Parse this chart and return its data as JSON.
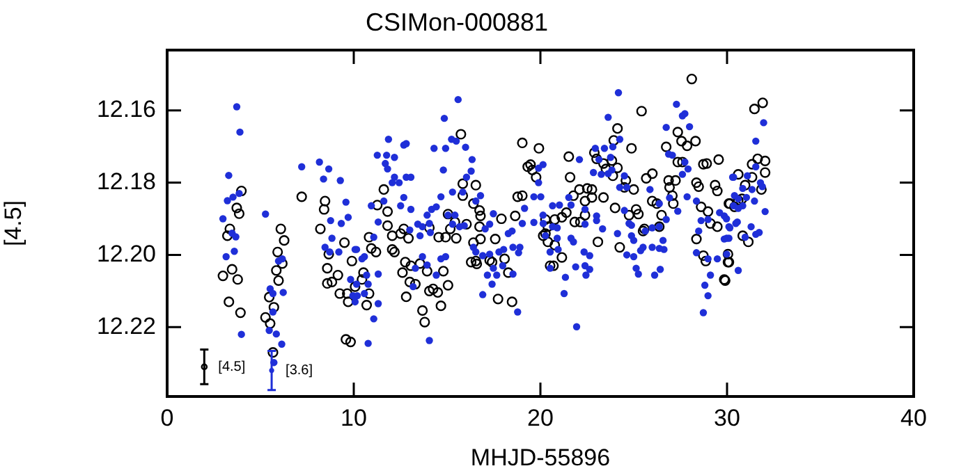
{
  "chart_data": {
    "type": "scatter",
    "title": "CSIMon-000881",
    "xlabel": "MHJD-55896",
    "ylabel": "[4.5]",
    "xlim": [
      0,
      40
    ],
    "xticks": [
      0,
      10,
      20,
      30,
      40
    ],
    "ylim": [
      12.2392,
      12.1433
    ],
    "yticks": [
      12.16,
      12.18,
      {
        "value": 12.2,
        "label": "12.20"
      },
      12.22
    ],
    "grid": false,
    "legend": false,
    "marker": "circle",
    "series": [
      {
        "color": "#000000",
        "x": [
          3.98,
          3.73,
          3.86,
          3.36,
          3.23,
          3.48,
          3.78,
          2.99,
          3.31,
          3.93,
          6.09,
          6.27,
          5.92,
          6.17,
          5.85,
          5.97,
          5.47,
          5.72,
          5.27,
          5.52,
          5.67,
          7.21,
          8.46,
          8.41,
          8.21,
          8.66,
          9.5,
          8.58,
          9.15,
          8.83,
          8.58,
          9.25,
          9.7,
          9.65,
          9.58,
          9.83,
          9.9,
          15.74,
          19.03,
          19.92,
          19.32,
          19.57,
          19.47,
          19.77,
          11.61,
          11.26,
          11.81,
          15.84,
          16.54,
          15.84,
          16.41,
          16.74,
          16.79,
          16.74,
          15.05,
          15.42,
          16.04,
          15.17,
          14.05,
          11.81,
          12.68,
          12.51,
          12.06,
          12.93,
          14.55,
          14.92,
          15.49,
          17.91,
          18.65,
          18.78,
          19.03,
          17.58,
          16.79,
          16.41,
          10.82,
          10.94,
          11.19,
          12.06,
          12.18,
          16.54,
          17.28,
          17.41,
          16.29,
          16.59,
          12.76,
          13.55,
          13.06,
          18.08,
          18.28,
          10.52,
          10.44,
          10.07,
          10.82,
          10.69,
          12.61,
          13.93,
          14.8,
          13.0,
          13.3,
          15.05,
          14.25,
          14.5,
          14.05,
          12.81,
          14.67,
          13.68,
          13.8,
          17.73,
          18.48,
          20.27,
          28.11,
          25.42,
          24.13,
          23.93,
          22.89,
          23.01,
          24.88,
          21.52,
          21.59,
          23.38,
          23.83,
          23.51,
          24.13,
          23.88,
          27.36,
          27.56,
          27.86,
          28.31,
          26.74,
          27.61,
          27.36,
          27.24,
          26.87,
          28.73,
          28.91,
          29.55,
          26.0,
          25.67,
          24.58,
          24.5,
          25.0,
          26.92,
          27.07,
          27.12,
          28.36,
          28.48,
          29.36,
          29.48,
          30.15,
          22.09,
          22.51,
          22.76,
          22.39,
          21.77,
          22.76,
          23.38,
          24.0,
          21.39,
          21.15,
          20.77,
          21.84,
          22.14,
          22.39,
          20.27,
          20.4,
          20.15,
          20.4,
          20.77,
          21.15,
          20.7,
          24.75,
          25.13,
          25.25,
          25.99,
          26.24,
          26.49,
          25.57,
          25.5,
          26.37,
          23.08,
          24.25,
          20.52,
          28.36,
          28.73,
          28.86,
          29.11,
          29.48,
          30.1,
          29.85,
          28.61,
          28.98,
          31.47,
          31.91,
          31.34,
          31.64,
          32.04,
          32.04,
          31.84,
          30.6,
          31.34,
          30.97,
          30.1,
          30.4,
          30.6,
          30.8,
          30.84,
          31.14,
          30.05,
          30.05,
          29.9
        ],
        "values": [
          12.1823,
          12.187,
          12.1886,
          12.1928,
          12.1947,
          12.204,
          12.2068,
          12.2058,
          12.213,
          12.216,
          12.1928,
          12.196,
          12.1992,
          12.2024,
          12.2043,
          12.2071,
          12.2117,
          12.2145,
          12.2173,
          12.219,
          12.227,
          12.1839,
          12.1851,
          12.1874,
          12.1928,
          12.1998,
          12.1966,
          12.2037,
          12.2056,
          12.2075,
          12.2079,
          12.2107,
          12.213,
          12.2107,
          12.2234,
          12.2241,
          12.2017,
          12.1666,
          12.169,
          12.1705,
          12.1756,
          12.1765,
          12.175,
          12.1785,
          12.1819,
          12.1862,
          12.188,
          12.1803,
          12.1807,
          12.1836,
          12.1858,
          12.1877,
          12.1892,
          12.1922,
          12.1887,
          12.1909,
          12.1915,
          12.1928,
          12.1925,
          12.1919,
          12.1928,
          12.1941,
          12.1947,
          12.1954,
          12.1951,
          12.1951,
          12.1954,
          12.19,
          12.1892,
          12.1839,
          12.1836,
          12.1956,
          12.1956,
          12.1966,
          12.1951,
          12.1982,
          12.1992,
          12.1985,
          12.1992,
          12.2017,
          12.2015,
          12.202,
          12.202,
          12.2025,
          12.202,
          12.2024,
          12.203,
          12.2011,
          12.2049,
          12.2049,
          12.2068,
          12.2088,
          12.2107,
          12.2139,
          12.2049,
          12.2045,
          12.2045,
          12.2075,
          12.2081,
          12.2084,
          12.2094,
          12.2104,
          12.21,
          12.2116,
          12.2141,
          12.2154,
          12.2186,
          12.2122,
          12.213,
          12.1941,
          12.1513,
          12.1602,
          12.165,
          12.1683,
          12.1717,
          12.1734,
          12.1705,
          12.1728,
          12.1785,
          12.1747,
          12.1739,
          12.1762,
          12.1759,
          12.1781,
          12.166,
          12.1685,
          12.1698,
          12.1685,
          12.1701,
          12.1743,
          12.1743,
          12.1794,
          12.1794,
          12.1749,
          12.1747,
          12.1736,
          12.1775,
          12.1788,
          12.1794,
          12.1813,
          12.1819,
          12.1813,
          12.1836,
          12.1858,
          12.18,
          12.1811,
          12.1807,
          12.1823,
          12.1858,
          12.1819,
          12.1816,
          12.1819,
          12.1851,
          12.1836,
          12.1841,
          12.1841,
          12.187,
          12.1883,
          12.1896,
          12.1902,
          12.1909,
          12.1909,
          12.189,
          12.1902,
          12.1922,
          12.1947,
          12.1964,
          12.1973,
          12.2007,
          12.203,
          12.189,
          12.1874,
          12.1887,
          12.1851,
          12.1858,
          12.189,
          12.1928,
          12.1934,
          12.1922,
          12.1964,
          12.1979,
          12.203,
          12.1956,
          12.2002,
          12.2017,
          12.1913,
          12.1922,
          12.202,
          12.2068,
          12.1867,
          12.188,
          12.1596,
          12.1579,
          12.1749,
          12.1734,
          12.174,
          12.1772,
          12.1819,
          12.1777,
          12.1785,
          12.1807,
          12.1858,
          12.1867,
          12.1849,
          12.1845,
          12.1947,
          12.1964,
          12.1998,
          12.202,
          12.2071
        ]
      },
      {
        "color": "#1f2fd8",
        "x": [
          3.73,
          3.9,
          3.3,
          3.86,
          3.23,
          3.53,
          2.99,
          3.48,
          3.68,
          3.6,
          3.16,
          3.98,
          5.27,
          5.52,
          5.67,
          6.22,
          6.17,
          5.97,
          5.67,
          5.47,
          5.85,
          6.14,
          5.72,
          7.21,
          8.16,
          8.66,
          8.38,
          9.28,
          9.58,
          9.7,
          8.76,
          8.83,
          8.46,
          8.71,
          9.2,
          9.33,
          10.15,
          9.83,
          10.15,
          9.95,
          10.07,
          15.59,
          14.85,
          11.86,
          12.68,
          12.81,
          15.24,
          15.49,
          11.26,
          11.76,
          12.18,
          14.3,
          14.92,
          15.99,
          11.69,
          11.81,
          16.34,
          14.8,
          16.29,
          12.18,
          12.81,
          13.06,
          12.43,
          12.06,
          16.04,
          15.84,
          15.29,
          16.79,
          16.54,
          12.68,
          11.61,
          10.94,
          12.51,
          13.06,
          14.67,
          14.42,
          14.17,
          13.93,
          15.05,
          15.42,
          11.31,
          13.43,
          13.68,
          14.05,
          15.29,
          15.67,
          15.92,
          17.28,
          17.04,
          17.48,
          13.0,
          13.55,
          14.1,
          11.07,
          16.41,
          16.54,
          16.91,
          17.28,
          17.78,
          18.03,
          18.53,
          18.9,
          18.83,
          18.28,
          18.48,
          19.03,
          19.65,
          19.15,
          19.65,
          20.14,
          20.02,
          19.9,
          19.9,
          20.14,
          10.07,
          10.57,
          10.44,
          13.68,
          14.67,
          14.92,
          13.3,
          13.93,
          10.69,
          11.31,
          17.48,
          17.66,
          17.98,
          17.16,
          18.53,
          17.41,
          14.42,
          13.18,
          10.57,
          10.19,
          10.77,
          11.31,
          16.91,
          11.07,
          18.78,
          10.77,
          14.05,
          24.18,
          27.29,
          27.61,
          27.74,
          23.63,
          26.74,
          27.99,
          24.25,
          23.88,
          23.43,
          22.94,
          23.14,
          26.87,
          27.07,
          27.74,
          27.91,
          27.61,
          22.09,
          23.76,
          22.84,
          23.26,
          23.63,
          23.83,
          24.5,
          24.25,
          24.63,
          25.87,
          26.37,
          26.92,
          30.35,
          21.52,
          21.02,
          20.65,
          21.64,
          22.39,
          20.15,
          20.65,
          20.9,
          23.01,
          23.01,
          23.33,
          24.5,
          24.75,
          24.88,
          25.62,
          25.99,
          26.37,
          26.74,
          27.36,
          27.86,
          28.36,
          28.61,
          28.98,
          29.6,
          29.85,
          30.35,
          30.1,
          29.98,
          28.48,
          20.27,
          20.9,
          21.64,
          21.77,
          22.39,
          24.13,
          24.88,
          25.0,
          25.5,
          25.99,
          26.57,
          26.37,
          26.62,
          24.63,
          25.0,
          25.37,
          20.52,
          20.95,
          22.34,
          22.64,
          28.36,
          28.98,
          29.48,
          29.98,
          20.52,
          21.89,
          22.39,
          22.64,
          21.34,
          22.44,
          25.13,
          25.25,
          26.12,
          26.42,
          29.11,
          28.81,
          28.98,
          28.73,
          21.27,
          21.94,
          31.96,
          31.54,
          30.3,
          31.09,
          31.54,
          30.84,
          31.34,
          31.79,
          31.89,
          30.4,
          30.6,
          31.04,
          31.47,
          30.84,
          30.6,
          32.04,
          29.97,
          30.47,
          30.55,
          30.15,
          31.29,
          30.1,
          29.85,
          31.72,
          31.54,
          30.97,
          30.6
        ],
        "values": [
          12.159,
          12.166,
          12.178,
          12.183,
          12.185,
          12.184,
          12.19,
          12.194,
          12.195,
          12.199,
          12.2005,
          12.222,
          12.1887,
          12.2094,
          12.2107,
          12.2104,
          12.2011,
          12.2017,
          12.2158,
          12.2209,
          12.2219,
          12.2247,
          12.2298,
          12.1756,
          12.1743,
          12.1762,
          12.179,
          12.1794,
          12.1854,
          12.1896,
          12.1905,
          12.1954,
          12.1979,
          12.1992,
          12.1992,
          12.1913,
          12.1985,
          12.2068,
          12.2081,
          12.2113,
          12.213,
          12.157,
          12.1622,
          12.168,
          12.1696,
          12.1692,
          12.168,
          12.1685,
          12.1724,
          12.1724,
          12.173,
          12.1705,
          12.1705,
          12.1702,
          12.1747,
          12.1762,
          12.1736,
          12.1765,
          12.1768,
          12.1785,
          12.1785,
          12.1785,
          12.18,
          12.18,
          12.1785,
          12.1826,
          12.1826,
          12.1836,
          12.1851,
          12.1841,
          12.1851,
          12.1864,
          12.1864,
          12.1874,
          12.1839,
          12.1867,
          12.1874,
          12.189,
          12.189,
          12.189,
          12.1909,
          12.1915,
          12.1922,
          12.1913,
          12.1915,
          12.1922,
          12.1919,
          12.1915,
          12.1928,
          12.1886,
          12.1931,
          12.1947,
          12.1938,
          12.1951,
          12.1979,
          12.1992,
          12.2002,
          12.1998,
          12.1992,
          12.1985,
          12.1979,
          12.1979,
          12.1994,
          12.1941,
          12.1934,
          12.1913,
          12.191,
          12.1871,
          12.1839,
          12.189,
          12.1839,
          12.18,
          12.176,
          12.175,
          12.1985,
          12.2005,
          12.2011,
          12.2005,
          12.2011,
          12.2005,
          12.2037,
          12.2028,
          12.2056,
          12.2053,
          12.2037,
          12.2056,
          12.203,
          12.2056,
          12.2053,
          12.2081,
          12.2056,
          12.2088,
          12.2107,
          12.2113,
          12.2081,
          12.2135,
          12.211,
          12.2177,
          12.2158,
          12.2245,
          12.2237,
          12.1551,
          12.1583,
          12.1615,
          12.1609,
          12.1619,
          12.1647,
          12.1645,
          12.168,
          12.1701,
          12.1705,
          12.1705,
          12.1736,
          12.1721,
          12.1724,
          12.1743,
          12.1762,
          12.1777,
          12.1736,
          12.173,
          12.1772,
          12.1777,
          12.1775,
          12.1765,
          12.1781,
          12.1813,
          12.1813,
          12.1819,
          12.1858,
          12.1842,
          12.1785,
          12.1841,
          12.1862,
          12.1864,
          12.1862,
          12.1874,
          12.1913,
          12.1922,
          12.1925,
          12.1892,
          12.1905,
          12.1928,
          12.1877,
          12.1913,
          12.1918,
          12.1934,
          12.1925,
          12.1922,
          12.1902,
          12.1879,
          12.1839,
          12.1851,
          12.1905,
          12.1902,
          12.1883,
          12.1892,
          12.1864,
          12.1922,
          12.1954,
          12.1934,
          12.1947,
          12.1954,
          12.1954,
          12.1964,
          12.1915,
          12.1941,
          12.1947,
          12.196,
          12.1979,
          12.1979,
          12.196,
          12.1982,
          12.1985,
          12.2,
          12.2005,
          12.1988,
          12.1992,
          12.1985,
          12.1992,
          12.2002,
          12.1994,
          12.2011,
          12.2011,
          12.1998,
          12.2037,
          12.2033,
          12.203,
          12.204,
          12.2062,
          12.2056,
          12.2037,
          12.2053,
          12.2056,
          12.204,
          12.2056,
          12.2084,
          12.2113,
          12.216,
          12.2107,
          12.2199,
          12.1634,
          12.1685,
          12.1785,
          12.1781,
          12.1756,
          12.1816,
          12.1819,
          12.18,
          12.1811,
          12.1836,
          12.1845,
          12.1841,
          12.1851,
          12.1864,
          12.1871,
          12.188,
          12.19,
          12.1913,
          12.1909,
          12.1925,
          12.1922,
          12.1954,
          12.1956,
          12.1938,
          12.1943,
          12.1951,
          12.2043
        ]
      },
      {
        "name": "[4.5]",
        "color": "#000000",
        "x": [
          1.99
        ],
        "values": [
          12.231
        ],
        "errors": [
          0.0048
        ]
      },
      {
        "name": "[3.6]",
        "color": "#1f2fd8",
        "x": [
          5.6
        ],
        "values": [
          12.232
        ],
        "errors": [
          0.0054
        ]
      }
    ]
  }
}
